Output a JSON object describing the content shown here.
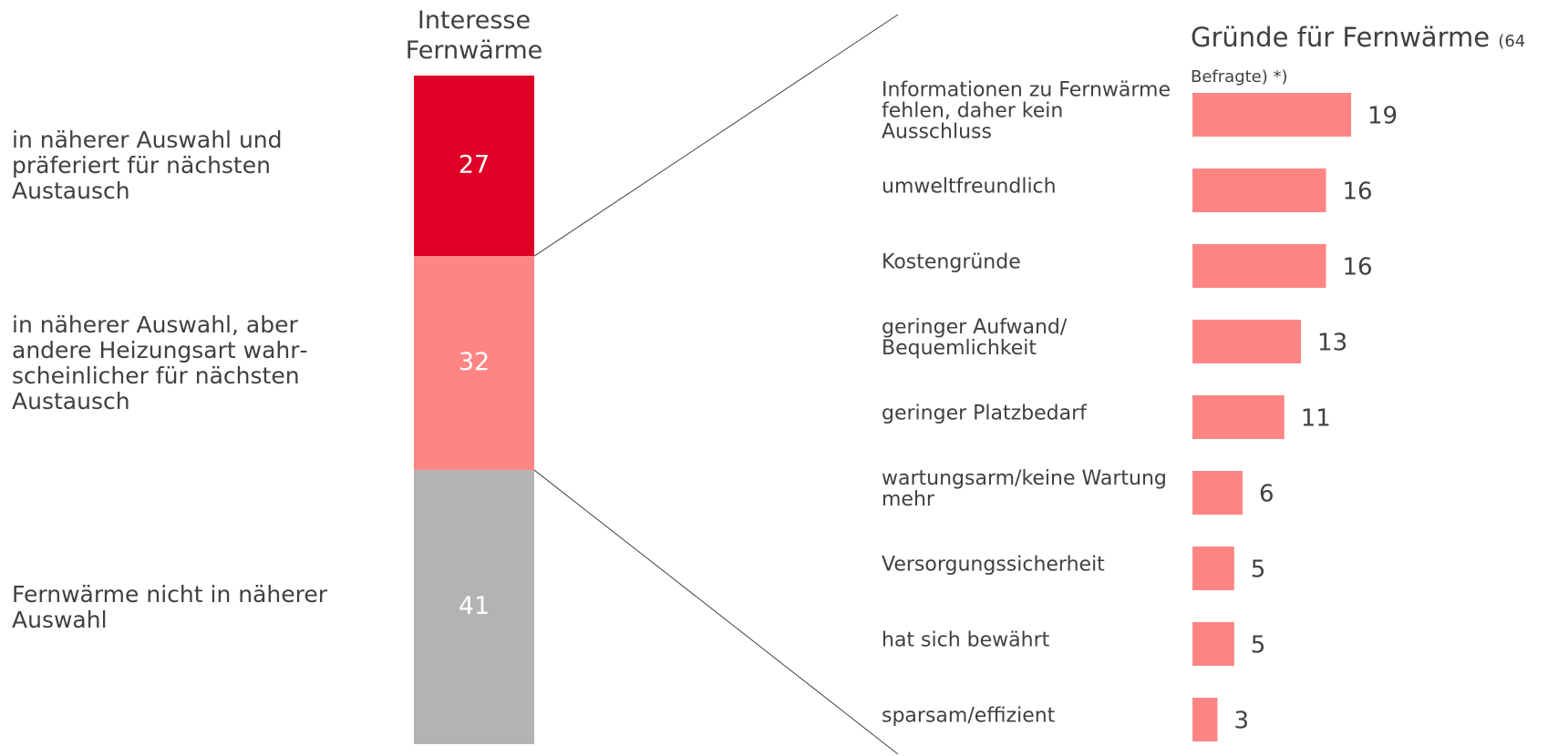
{
  "chart_data": [
    {
      "type": "stacked-bar",
      "title": "Interesse Fernwärme",
      "series": [
        {
          "name": "in näherer Auswahl und präferiert für nächsten Austausch",
          "color": "#e00025",
          "values": [
            27
          ]
        },
        {
          "name": "in näherer Auswahl, aber andere Heizungsart wahr­scheinlicher für nächsten Austausch",
          "color": "#ff8585",
          "values": [
            32
          ]
        },
        {
          "name": "Fernwärme nicht in näherer Auswahl",
          "color": "#b3b3b3",
          "values": [
            41
          ]
        }
      ]
    },
    {
      "type": "hbar",
      "title": "Gründe für Fernwärme",
      "subtitle": "(64 Befragte) *)",
      "color": "#ff8585",
      "categories": [
        "Informationen zu Fern­wärme fehlen, daher kein Ausschluss",
        "umweltfreundlich",
        "Kostengründe",
        "geringer Aufwand/ Bequemlichkeit",
        "geringer Platzbedarf",
        "wartungsarm/keine Wartung mehr",
        "Versorgungssicherheit",
        "hat sich bewährt",
        "sparsam/effizient"
      ],
      "values": [
        19,
        16,
        16,
        13,
        11,
        6,
        5,
        5,
        3
      ]
    }
  ]
}
